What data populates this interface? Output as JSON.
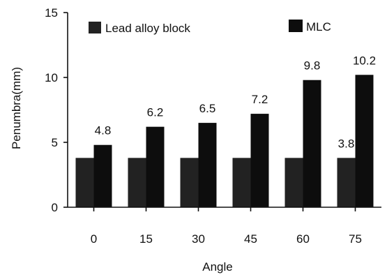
{
  "chart_data": {
    "type": "bar",
    "title": "",
    "xlabel": "Angle",
    "ylabel": "Penumbra(mm)",
    "categories": [
      "0",
      "15",
      "30",
      "45",
      "60",
      "75"
    ],
    "ylim": [
      0,
      15
    ],
    "yticks": [
      0,
      5,
      10,
      15
    ],
    "grid": false,
    "legend_position": "top",
    "series": [
      {
        "name": "Lead alloy block",
        "values": [
          3.8,
          3.8,
          3.8,
          3.8,
          3.8,
          3.8
        ],
        "labels": [
          "",
          "",
          "",
          "",
          "",
          "3.8"
        ],
        "color": "#222222"
      },
      {
        "name": "MLC",
        "values": [
          4.8,
          6.2,
          6.5,
          7.2,
          9.8,
          10.2
        ],
        "labels": [
          "4.8",
          "6.2",
          "6.5",
          "7.2",
          "9.8",
          "10.2"
        ],
        "color": "#0d0d0d"
      }
    ]
  }
}
